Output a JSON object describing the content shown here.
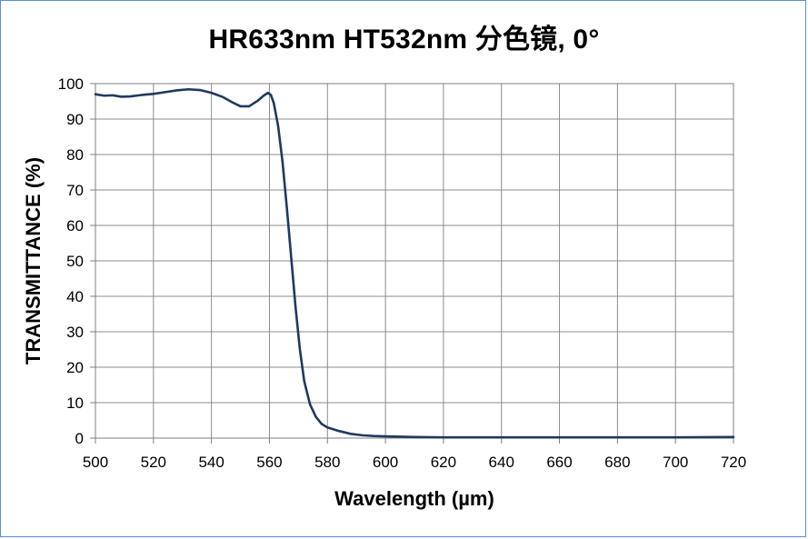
{
  "chart_data": {
    "type": "line",
    "title": "HR633nm  HT532nm 分色镜, 0°",
    "xlabel": "Wavelength (µm)",
    "ylabel": "TRANSMITTANCE (%)",
    "xlim": [
      500,
      720
    ],
    "ylim": [
      0,
      100
    ],
    "x_ticks": [
      "500",
      "520",
      "540",
      "560",
      "580",
      "600",
      "620",
      "640",
      "660",
      "680",
      "700",
      "720"
    ],
    "y_ticks": [
      "0",
      "10",
      "20",
      "30",
      "40",
      "50",
      "60",
      "70",
      "80",
      "90",
      "100"
    ],
    "grid": true,
    "series": [
      {
        "color": "#1f3a5f",
        "points": [
          [
            500,
            97.0
          ],
          [
            503,
            96.6
          ],
          [
            506,
            96.7
          ],
          [
            509,
            96.3
          ],
          [
            512,
            96.4
          ],
          [
            516,
            96.8
          ],
          [
            520,
            97.1
          ],
          [
            524,
            97.6
          ],
          [
            528,
            98.1
          ],
          [
            532,
            98.4
          ],
          [
            536,
            98.2
          ],
          [
            540,
            97.4
          ],
          [
            544,
            96.2
          ],
          [
            547,
            94.8
          ],
          [
            550,
            93.6
          ],
          [
            553,
            93.6
          ],
          [
            556,
            95.2
          ],
          [
            558,
            96.6
          ],
          [
            559.5,
            97.4
          ],
          [
            560.5,
            96.8
          ],
          [
            561.5,
            94.5
          ],
          [
            563,
            88.0
          ],
          [
            564.5,
            78.0
          ],
          [
            566,
            65.0
          ],
          [
            567.5,
            51.0
          ],
          [
            569,
            37.0
          ],
          [
            570.5,
            25.0
          ],
          [
            572,
            16.0
          ],
          [
            574,
            9.5
          ],
          [
            576,
            6.0
          ],
          [
            578,
            4.0
          ],
          [
            580,
            3.0
          ],
          [
            584,
            2.0
          ],
          [
            588,
            1.2
          ],
          [
            592,
            0.8
          ],
          [
            596,
            0.6
          ],
          [
            600,
            0.5
          ],
          [
            610,
            0.3
          ],
          [
            620,
            0.2
          ],
          [
            640,
            0.2
          ],
          [
            660,
            0.2
          ],
          [
            680,
            0.2
          ],
          [
            700,
            0.2
          ],
          [
            720,
            0.3
          ]
        ]
      }
    ]
  }
}
